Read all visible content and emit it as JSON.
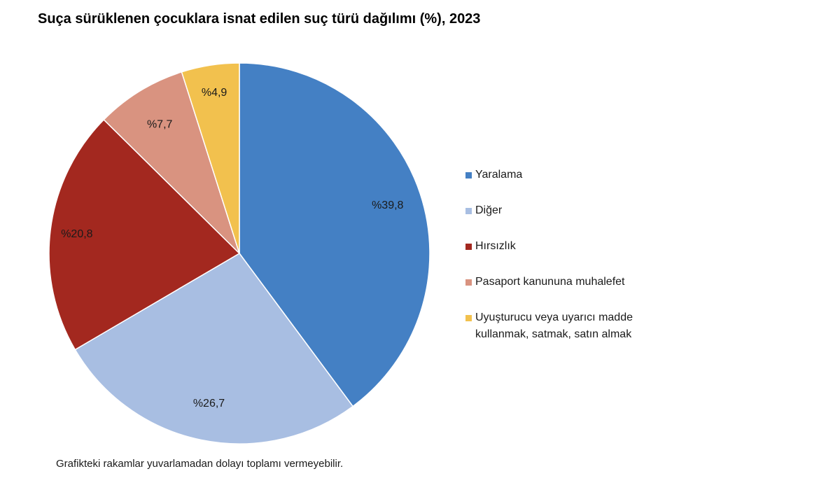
{
  "chart_data": {
    "type": "pie",
    "title": "Suça sürüklenen çocuklara isnat edilen suç türü dağılımı (%), 2023",
    "slices": [
      {
        "label": "Yaralama",
        "value": 39.8,
        "data_label": "%39,8",
        "color": "#4480C4"
      },
      {
        "label": "Diğer",
        "value": 26.7,
        "data_label": "%26,7",
        "color": "#A8BEE2"
      },
      {
        "label": "Hırsızlık",
        "value": 20.8,
        "data_label": "%20,8",
        "color": "#A3281F"
      },
      {
        "label": "Pasaport kanununa muhalefet",
        "value": 7.7,
        "data_label": "%7,7",
        "color": "#D99380"
      },
      {
        "label": "Uyuşturucu veya uyarıcı madde kullanmak, satmak, satın almak",
        "value": 4.9,
        "data_label": "%4,9",
        "color": "#F2C14E"
      }
    ],
    "start_angle": "12 o'clock",
    "direction": "clockwise",
    "legend_position": "right",
    "footnote": "Grafikteki rakamlar yuvarlamadan dolayı toplamı vermeyebilir."
  }
}
